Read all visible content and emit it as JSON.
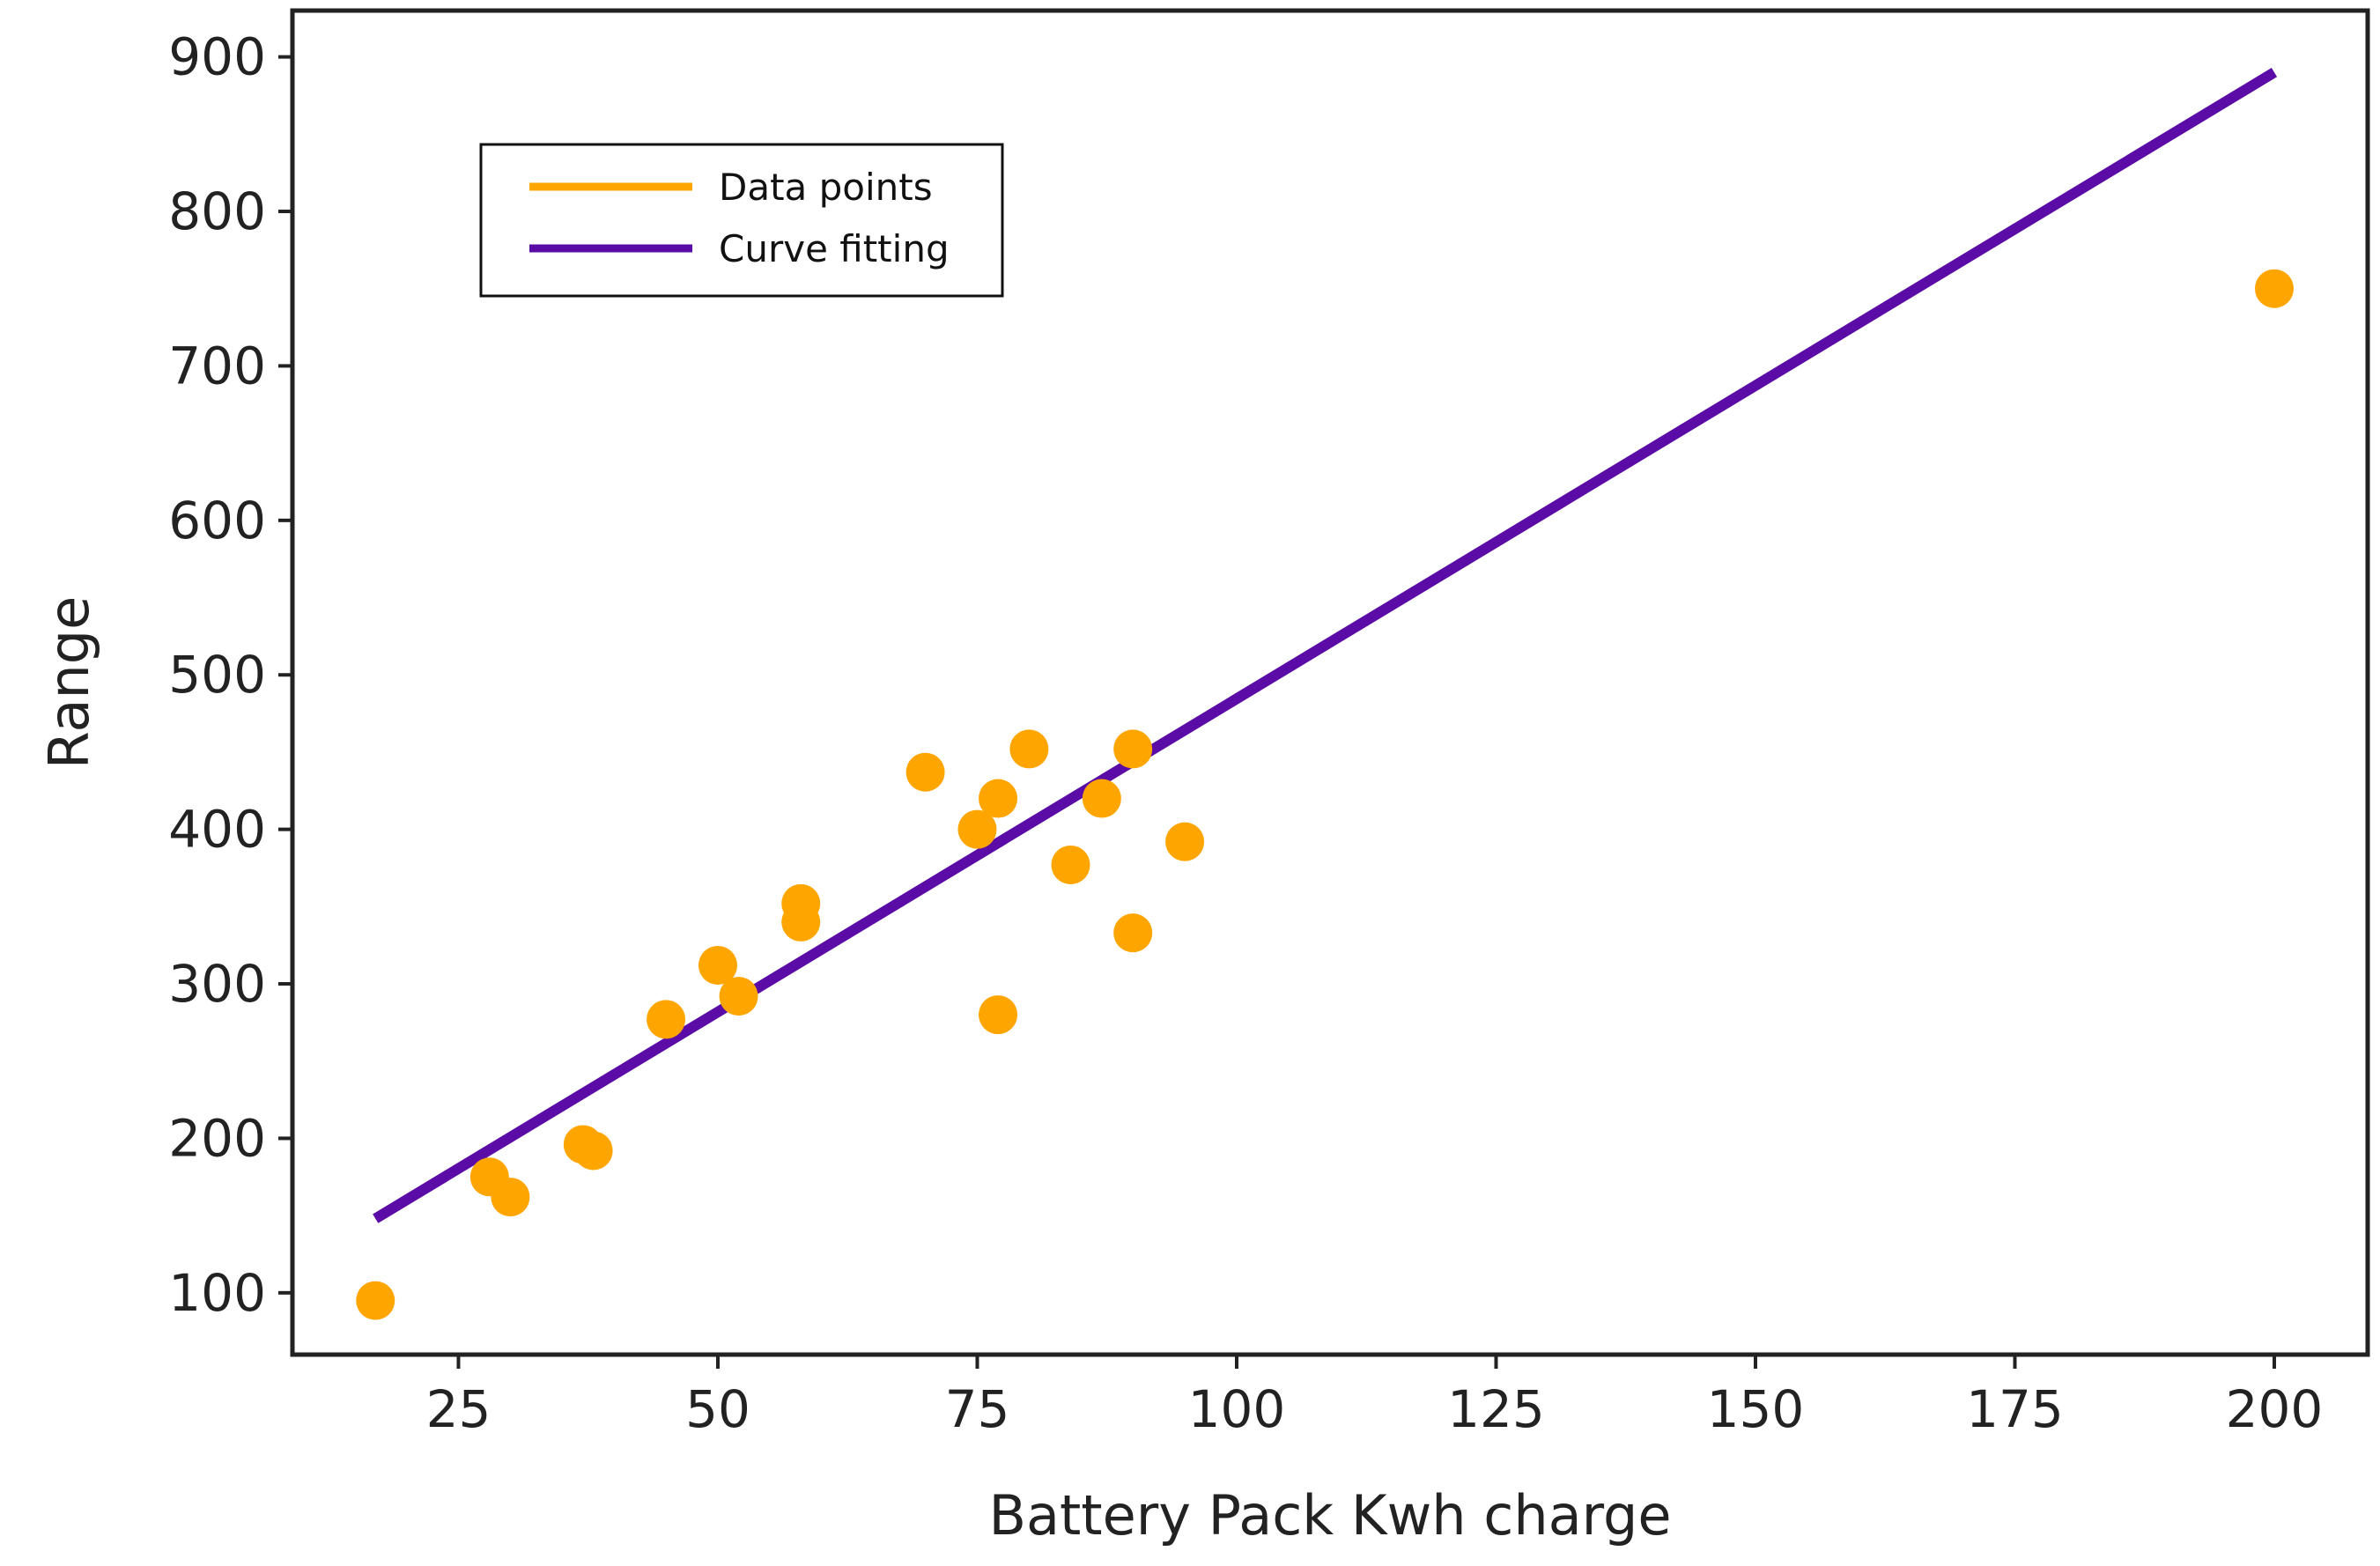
{
  "chart_data": {
    "type": "scatter",
    "xlabel": "Battery Pack Kwh charge",
    "ylabel": "Range",
    "xlim": [
      9,
      209
    ],
    "ylim": [
      60,
      930
    ],
    "xticks": [
      25,
      50,
      75,
      100,
      125,
      150,
      175,
      200
    ],
    "yticks": [
      100,
      200,
      300,
      400,
      500,
      600,
      700,
      800,
      900
    ],
    "grid": false,
    "legend": {
      "placement": "top-left",
      "entries": [
        {
          "label": "Data points",
          "color": "#FFA500"
        },
        {
          "label": "Curve fitting",
          "color": "#5B0CA6"
        }
      ]
    },
    "series": [
      {
        "name": "Data points",
        "kind": "scatter",
        "color": "#FFA500",
        "points": [
          [
            17,
            95
          ],
          [
            28,
            175
          ],
          [
            30,
            162
          ],
          [
            37,
            196
          ],
          [
            38,
            192
          ],
          [
            45,
            277
          ],
          [
            50,
            312
          ],
          [
            52,
            292
          ],
          [
            58,
            352
          ],
          [
            58,
            340
          ],
          [
            70,
            437
          ],
          [
            75,
            400
          ],
          [
            77,
            420
          ],
          [
            77,
            280
          ],
          [
            80,
            452
          ],
          [
            84,
            377
          ],
          [
            87,
            420
          ],
          [
            90,
            452
          ],
          [
            90,
            333
          ],
          [
            95,
            392
          ],
          [
            200,
            750
          ]
        ]
      },
      {
        "name": "Curve fitting",
        "kind": "line",
        "color": "#5B0CA6",
        "points": [
          [
            17,
            148
          ],
          [
            200,
            890
          ]
        ]
      }
    ]
  }
}
